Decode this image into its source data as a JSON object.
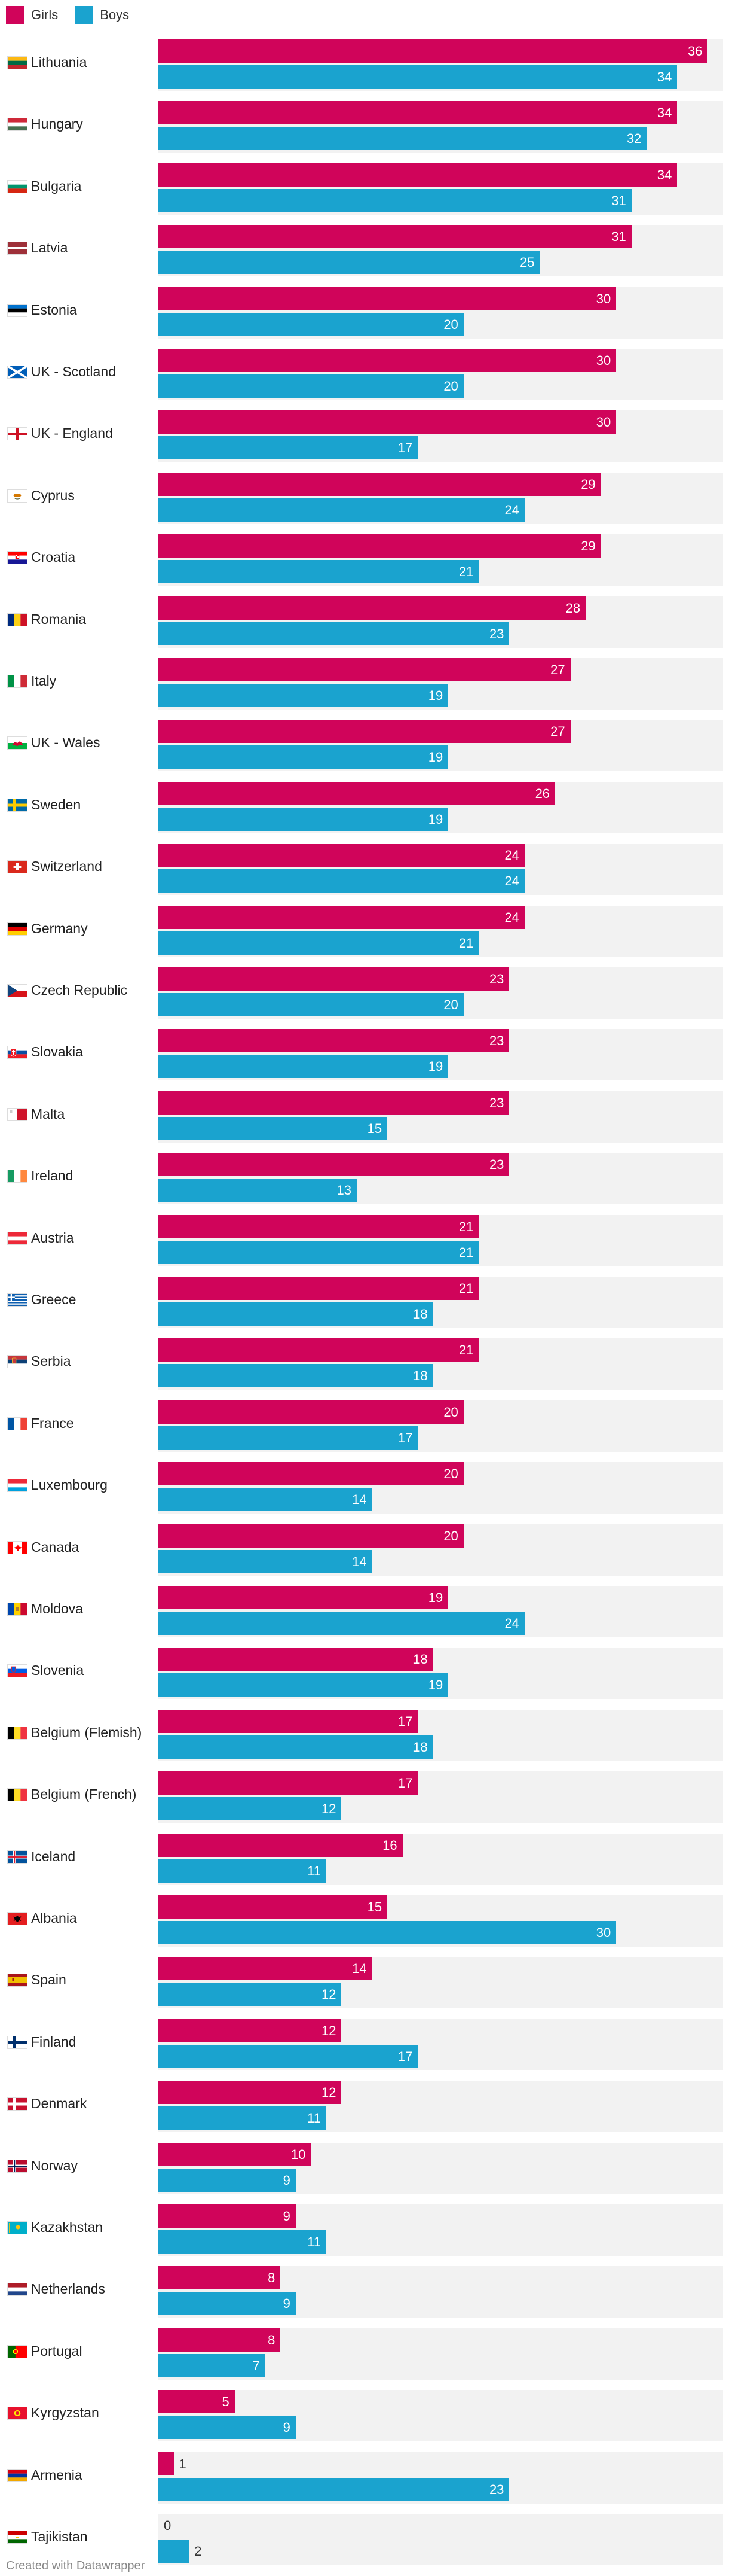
{
  "legend": {
    "girls_label": "Girls",
    "boys_label": "Boys"
  },
  "colors": {
    "girls": "#d0045a",
    "boys": "#1aa3cf",
    "row_background": "#f2f2f2"
  },
  "footer": {
    "credit": "Created with Datawrapper"
  },
  "chart_data": {
    "type": "bar",
    "orientation": "horizontal",
    "title": "",
    "xlabel": "",
    "ylabel": "",
    "xlim": [
      0,
      37
    ],
    "grid": false,
    "legend_position": "top-left",
    "categories": [
      "Lithuania",
      "Hungary",
      "Bulgaria",
      "Latvia",
      "Estonia",
      "UK - Scotland",
      "UK - England",
      "Cyprus",
      "Croatia",
      "Romania",
      "Italy",
      "UK - Wales",
      "Sweden",
      "Switzerland",
      "Germany",
      "Czech Republic",
      "Slovakia",
      "Malta",
      "Ireland",
      "Austria",
      "Greece",
      "Serbia",
      "France",
      "Luxembourg",
      "Canada",
      "Moldova",
      "Slovenia",
      "Belgium (Flemish)",
      "Belgium (French)",
      "Iceland",
      "Albania",
      "Spain",
      "Finland",
      "Denmark",
      "Norway",
      "Kazakhstan",
      "Netherlands",
      "Portugal",
      "Kyrgyzstan",
      "Armenia",
      "Tajikistan"
    ],
    "series": [
      {
        "name": "Girls",
        "values": [
          36,
          34,
          34,
          31,
          30,
          30,
          30,
          29,
          29,
          28,
          27,
          27,
          26,
          24,
          24,
          23,
          23,
          23,
          23,
          21,
          21,
          21,
          20,
          20,
          20,
          19,
          18,
          17,
          17,
          16,
          15,
          14,
          12,
          12,
          10,
          9,
          8,
          8,
          5,
          1,
          0
        ]
      },
      {
        "name": "Boys",
        "values": [
          34,
          32,
          31,
          25,
          20,
          20,
          17,
          24,
          21,
          23,
          19,
          19,
          19,
          24,
          21,
          20,
          19,
          15,
          13,
          21,
          18,
          18,
          17,
          14,
          14,
          24,
          19,
          18,
          12,
          11,
          30,
          12,
          17,
          11,
          9,
          11,
          9,
          7,
          9,
          23,
          2
        ]
      }
    ]
  }
}
